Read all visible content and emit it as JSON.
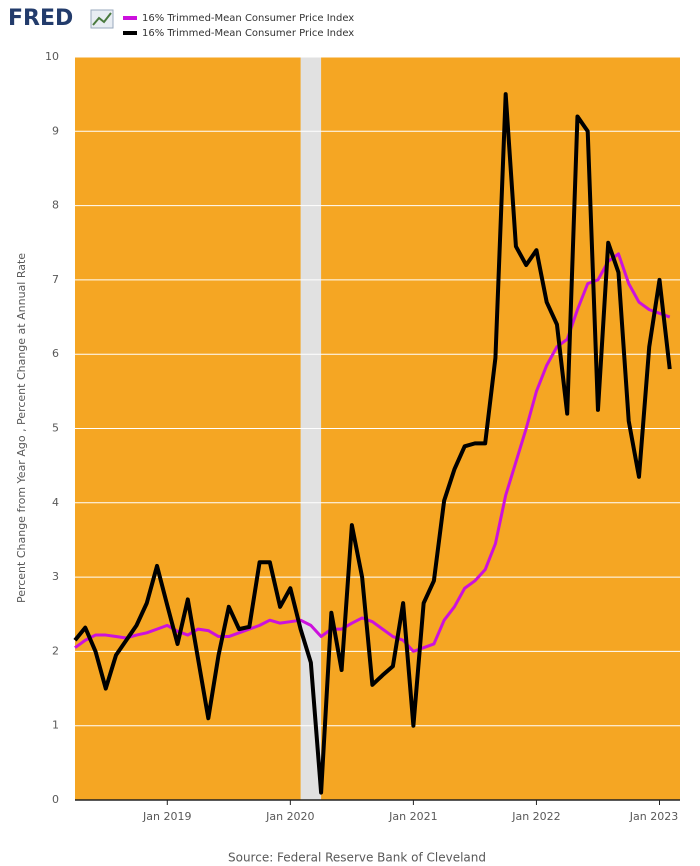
{
  "logo": "FRED",
  "chart_data": {
    "type": "line",
    "y_label": "Percent Change from Year Ago , Percent Change at Annual Rate",
    "source": "Source: Federal Reserve Bank of Cleveland",
    "x": [
      "2018-04",
      "2018-05",
      "2018-06",
      "2018-07",
      "2018-08",
      "2018-09",
      "2018-10",
      "2018-11",
      "2018-12",
      "2019-01",
      "2019-02",
      "2019-03",
      "2019-04",
      "2019-05",
      "2019-06",
      "2019-07",
      "2019-08",
      "2019-09",
      "2019-10",
      "2019-11",
      "2019-12",
      "2020-01",
      "2020-02",
      "2020-03",
      "2020-04",
      "2020-05",
      "2020-06",
      "2020-07",
      "2020-08",
      "2020-09",
      "2020-10",
      "2020-11",
      "2020-12",
      "2021-01",
      "2021-02",
      "2021-03",
      "2021-04",
      "2021-05",
      "2021-06",
      "2021-07",
      "2021-08",
      "2021-09",
      "2021-10",
      "2021-11",
      "2021-12",
      "2022-01",
      "2022-02",
      "2022-03",
      "2022-04",
      "2022-05",
      "2022-06",
      "2022-07",
      "2022-08",
      "2022-09",
      "2022-10",
      "2022-11",
      "2022-12",
      "2023-01",
      "2023-02"
    ],
    "series": [
      {
        "name": "16% Trimmed-Mean Consumer Price Index",
        "color": "#cc11dd",
        "values": [
          2.05,
          2.15,
          2.22,
          2.22,
          2.2,
          2.18,
          2.22,
          2.25,
          2.3,
          2.35,
          2.27,
          2.22,
          2.3,
          2.28,
          2.2,
          2.2,
          2.25,
          2.3,
          2.35,
          2.42,
          2.38,
          2.4,
          2.42,
          2.35,
          2.2,
          2.3,
          2.3,
          2.38,
          2.45,
          2.4,
          2.3,
          2.2,
          2.15,
          2.0,
          2.05,
          2.1,
          2.42,
          2.6,
          2.85,
          2.95,
          3.1,
          3.45,
          4.1,
          4.55,
          5.0,
          5.5,
          5.85,
          6.1,
          6.2,
          6.6,
          6.95,
          7.0,
          7.25,
          7.35,
          6.95,
          6.7,
          6.6,
          6.55,
          6.5
        ]
      },
      {
        "name": "16% Trimmed-Mean Consumer Price Index",
        "color": "#000000",
        "values": [
          2.15,
          2.32,
          2.0,
          1.5,
          1.95,
          2.15,
          2.35,
          2.65,
          3.15,
          2.62,
          2.1,
          2.7,
          1.9,
          1.1,
          1.95,
          2.6,
          2.3,
          2.33,
          3.2,
          3.2,
          2.6,
          2.85,
          2.3,
          1.85,
          0.1,
          2.52,
          1.75,
          3.7,
          3.0,
          1.55,
          1.68,
          1.8,
          2.65,
          1.0,
          2.65,
          2.95,
          4.03,
          4.45,
          4.76,
          4.8,
          4.8,
          5.95,
          9.5,
          7.45,
          7.2,
          7.4,
          6.7,
          6.4,
          5.2,
          9.2,
          9.0,
          5.25,
          7.5,
          7.1,
          5.1,
          4.35,
          6.1,
          7.0,
          5.8
        ]
      }
    ],
    "recessions": [
      {
        "start": "2020-02",
        "end": "2020-04"
      }
    ],
    "xlim": [
      "2018-04",
      "2023-03"
    ],
    "xticks": [
      {
        "value": "2019-01",
        "label": "Jan 2019"
      },
      {
        "value": "2020-01",
        "label": "Jan 2020"
      },
      {
        "value": "2021-01",
        "label": "Jan 2021"
      },
      {
        "value": "2022-01",
        "label": "Jan 2022"
      },
      {
        "value": "2023-01",
        "label": "Jan 2023"
      }
    ],
    "ylim": [
      0,
      10
    ],
    "yticks": [
      0,
      1,
      2,
      3,
      4,
      5,
      6,
      7,
      8,
      9,
      10
    ],
    "grid": true,
    "plot_color": "#f5a623",
    "recession_color": "#e1e1e1"
  }
}
